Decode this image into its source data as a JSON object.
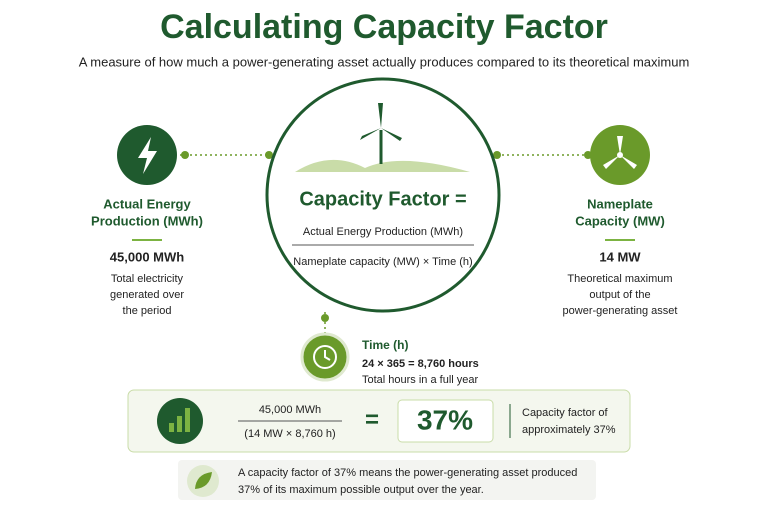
{
  "header": {
    "title": "Calculating Capacity Factor",
    "subtitle": "A measure of how much a power-generating asset actually produces compared to its theoretical maximum"
  },
  "left": {
    "label": [
      "Actual Energy",
      "Production (MWh)"
    ],
    "value": "45,000 MWh",
    "description": [
      "Total electricity",
      "generated over",
      "the period"
    ]
  },
  "center": {
    "heading": "Capacity Factor =",
    "numerator": "Actual Energy Production (MWh)",
    "denominator": "Nameplate capacity (MW) × Time (h)"
  },
  "right": {
    "label": [
      "Nameplate",
      "Capacity (MW)"
    ],
    "value": "14 MW",
    "description": [
      "Theoretical maximum",
      "output of the",
      "power-generating asset"
    ]
  },
  "time": {
    "label": "Time (h)",
    "formula": "24 × 365 = 8,760 hours",
    "description": "Total hours in a full year"
  },
  "result": {
    "numerator": "45,000 MWh",
    "denominator": "(14 MW × 8,760 h)",
    "equals": "=",
    "value": "37%",
    "description": [
      "Capacity factor of",
      "approximately 37%"
    ]
  },
  "note": {
    "text": [
      "A capacity factor of 37% means the power-generating asset produced",
      "37% of its maximum possible output over the year."
    ]
  }
}
